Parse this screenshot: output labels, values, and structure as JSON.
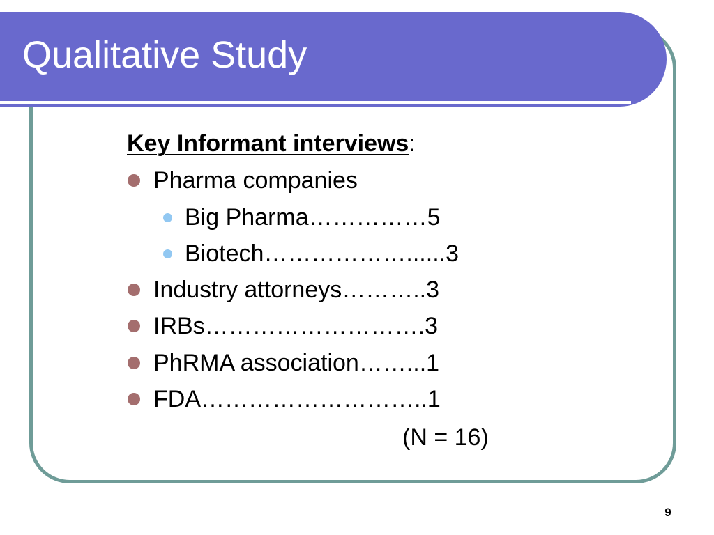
{
  "slide": {
    "title": "Qualitative Study",
    "heading": "Key Informant interviews",
    "heading_suffix": ":",
    "items": [
      {
        "label": "Pharma companies"
      },
      {
        "label": "Big Pharma……………5"
      },
      {
        "label": "Biotech………………......3"
      },
      {
        "label": "Industry attorneys………..3"
      },
      {
        "label": "IRBs……………………….3"
      },
      {
        "label": "PhRMA association……...1"
      },
      {
        "label": "FDA………………………..1"
      }
    ],
    "total": "(N = 16)",
    "page_number": "9"
  },
  "colors": {
    "title_band": "#6969cd",
    "frame_border": "#6f9c98",
    "bullet_level1": "#a46e6e",
    "bullet_level2": "#92c8f2",
    "title_text": "#ffffff"
  }
}
